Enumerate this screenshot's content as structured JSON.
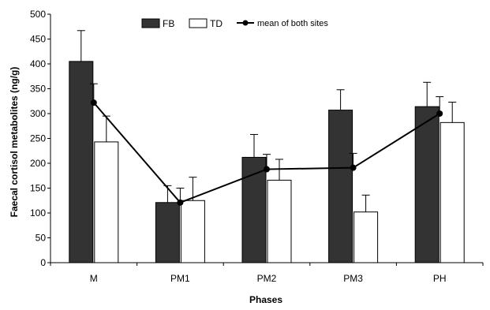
{
  "chart_data": {
    "type": "bar",
    "categories": [
      "M",
      "PM1",
      "PM2",
      "PM3",
      "PH"
    ],
    "xlabel": "Phases",
    "ylabel": "Faecal cortisol metabolites (ng/g)",
    "ylim": [
      0,
      500
    ],
    "yticks": [
      0,
      50,
      100,
      150,
      200,
      250,
      300,
      350,
      400,
      450,
      500
    ],
    "grid": false,
    "legend_position": "top-center",
    "series": [
      {
        "name": "FB",
        "kind": "bar",
        "color": "#333333",
        "values": [
          405,
          121,
          212,
          307,
          314
        ],
        "error_upper": [
          467,
          155,
          258,
          348,
          363
        ]
      },
      {
        "name": "TD",
        "kind": "bar",
        "color": "#ffffff",
        "values": [
          243,
          125,
          166,
          102,
          282
        ],
        "error_upper": [
          295,
          172,
          208,
          136,
          323
        ]
      },
      {
        "name": "mean of both sites",
        "kind": "line",
        "color": "#000000",
        "values": [
          322,
          121,
          188,
          191,
          300
        ],
        "error_upper": [
          360,
          150,
          218,
          220,
          334
        ]
      }
    ]
  }
}
